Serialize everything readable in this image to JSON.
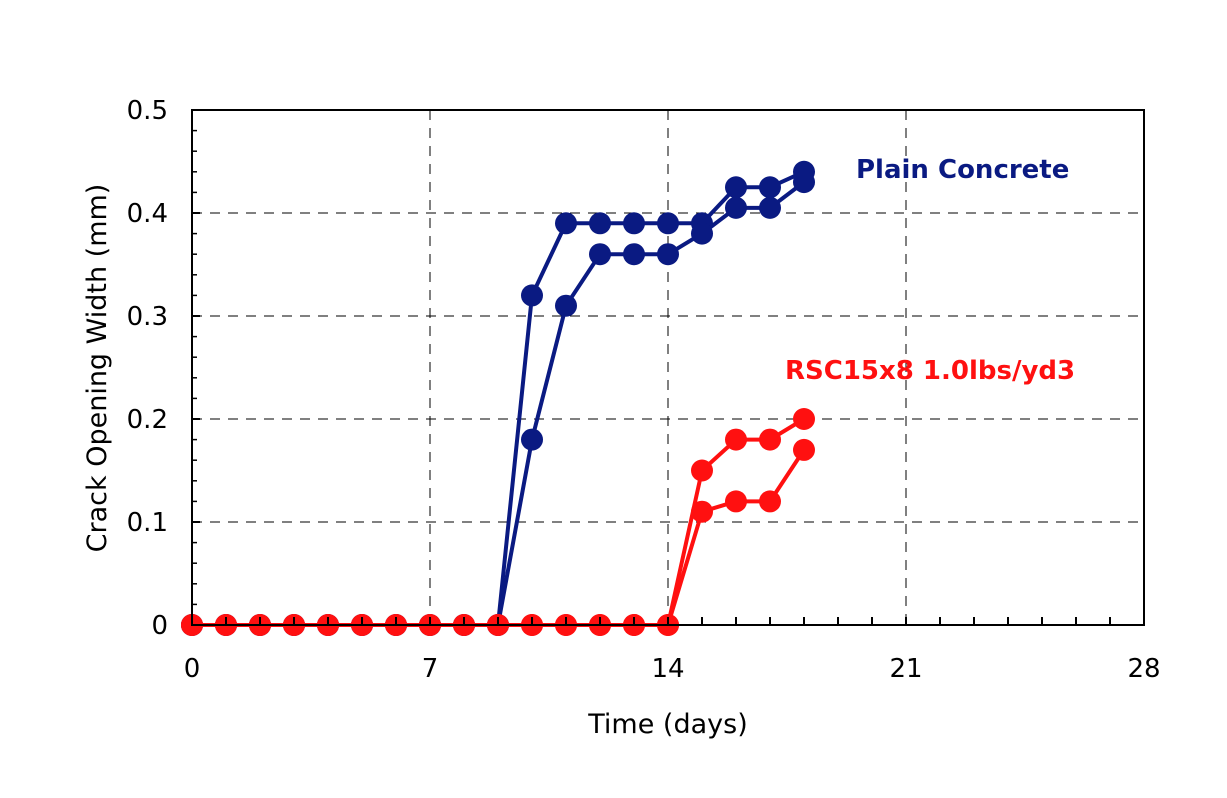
{
  "chart_data": {
    "type": "line",
    "title": "",
    "xlabel": "Time (days)",
    "ylabel": "Crack Opening Width (mm)",
    "xlim": [
      0,
      28
    ],
    "ylim": [
      0,
      0.5
    ],
    "xticks": [
      "0",
      "7",
      "14",
      "21",
      "28"
    ],
    "yticks": [
      "0",
      "0.1",
      "0.2",
      "0.3",
      "0.4",
      "0.5"
    ],
    "grid": true,
    "annotations": [
      {
        "text": "Plain Concrete",
        "color": "#0a1a82"
      },
      {
        "text": "RSC15x8 1.0lbs/yd3",
        "color": "#ff1010"
      }
    ],
    "series": [
      {
        "color": "#0a1a82",
        "x": [
          0,
          1,
          2,
          3,
          4,
          5,
          6,
          7,
          8,
          9,
          10,
          11,
          12,
          13,
          14,
          15,
          16,
          17,
          18
        ],
        "y": [
          0,
          0,
          0,
          0,
          0,
          0,
          0,
          0,
          0,
          0,
          0.32,
          0.39,
          0.39,
          0.39,
          0.39,
          0.39,
          0.425,
          0.425,
          0.44
        ]
      },
      {
        "color": "#0a1a82",
        "x": [
          0,
          1,
          2,
          3,
          4,
          5,
          6,
          7,
          8,
          9,
          10,
          11,
          12,
          13,
          14,
          15,
          16,
          17,
          18
        ],
        "y": [
          0,
          0,
          0,
          0,
          0,
          0,
          0,
          0,
          0,
          0,
          0.18,
          0.31,
          0.36,
          0.36,
          0.36,
          0.38,
          0.405,
          0.405,
          0.43
        ]
      },
      {
        "color": "#ff1010",
        "x": [
          0,
          1,
          2,
          3,
          4,
          5,
          6,
          7,
          8,
          9,
          10,
          11,
          12,
          13,
          14,
          15,
          16,
          17,
          18
        ],
        "y": [
          0,
          0,
          0,
          0,
          0,
          0,
          0,
          0,
          0,
          0,
          0,
          0,
          0,
          0,
          0,
          0.15,
          0.18,
          0.18,
          0.2
        ]
      },
      {
        "color": "#ff1010",
        "x": [
          0,
          1,
          2,
          3,
          4,
          5,
          6,
          7,
          8,
          9,
          10,
          11,
          12,
          13,
          14,
          15,
          16,
          17,
          18
        ],
        "y": [
          0,
          0,
          0,
          0,
          0,
          0,
          0,
          0,
          0,
          0,
          0,
          0,
          0,
          0,
          0,
          0.11,
          0.12,
          0.12,
          0.17
        ]
      }
    ]
  }
}
